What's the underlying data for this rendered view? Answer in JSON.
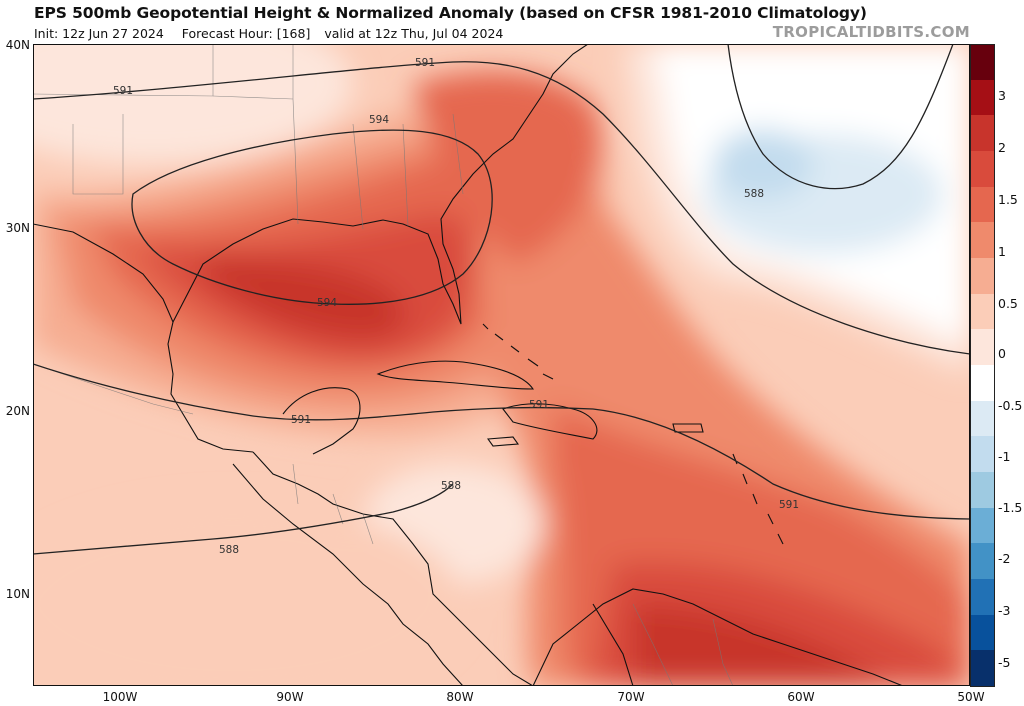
{
  "header": {
    "title": "EPS 500mb Geopotential Height & Normalized Anomaly (based on CFSR 1981-2010 Climatology)",
    "init": "Init: 12z Jun 27 2024",
    "forecast_hour": "Forecast Hour: [168]",
    "valid": "valid at 12z Thu, Jul 04 2024",
    "brand": "TROPICALTIDBITS.COM"
  },
  "axes": {
    "latitudes": [
      "40N",
      "30N",
      "20N",
      "10N"
    ],
    "longitudes": [
      "100W",
      "90W",
      "80W",
      "70W",
      "60W",
      "50W"
    ]
  },
  "contours": {
    "labels": [
      "591",
      "591",
      "594",
      "594",
      "591",
      "591",
      "588",
      "588",
      "591",
      "588"
    ]
  },
  "colorbar": {
    "labels": [
      "3",
      "2",
      "1.5",
      "1",
      "0.5",
      "0",
      "-0.5",
      "-1",
      "-1.5",
      "-2",
      "-3",
      "-5"
    ],
    "colors": [
      "#67000d",
      "#a50f15",
      "#c8342c",
      "#d94b3c",
      "#e5674f",
      "#ef8a6c",
      "#f6ad92",
      "#fbcdb8",
      "#fde6dc",
      "#ffffff",
      "#dceaf4",
      "#c2dcee",
      "#9ecae1",
      "#6baed6",
      "#4292c6",
      "#2171b5",
      "#08519c",
      "#08306b"
    ]
  }
}
